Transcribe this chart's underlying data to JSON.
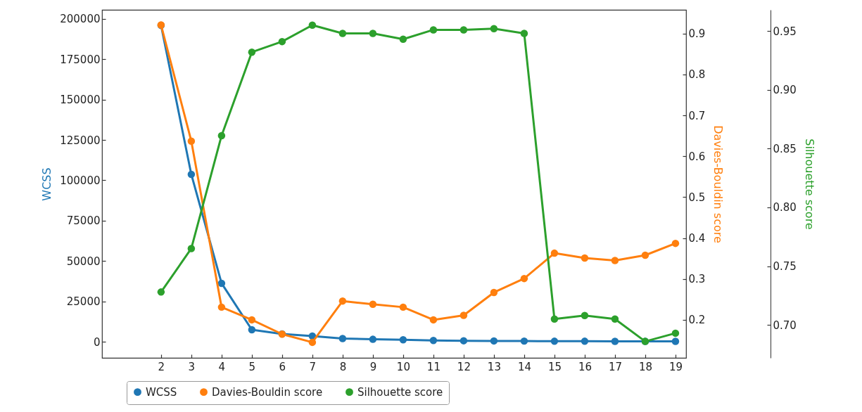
{
  "chart_data": {
    "type": "line",
    "ylabel": "WCSS",
    "y2label": "Davies-Bouldin score",
    "y3label": "Silhouette score",
    "marker": "circle",
    "grid": false,
    "legend": "bottom",
    "x": [
      2,
      3,
      4,
      5,
      6,
      7,
      8,
      9,
      10,
      11,
      12,
      13,
      14,
      15,
      16,
      17,
      18,
      19
    ],
    "xlim": [
      0.05,
      19.35
    ],
    "xticks": [
      2,
      3,
      4,
      5,
      6,
      7,
      8,
      9,
      10,
      11,
      12,
      13,
      14,
      15,
      16,
      17,
      18,
      19
    ],
    "ylim": [
      -10000,
      205600
    ],
    "yticks": [
      0,
      25000,
      50000,
      75000,
      100000,
      125000,
      150000,
      175000,
      200000
    ],
    "y2lim": [
      0.107,
      0.958
    ],
    "y2ticks": [
      0.2,
      0.3,
      0.4,
      0.5,
      0.6,
      0.7,
      0.8,
      0.9
    ],
    "y3lim": [
      0.672,
      0.968
    ],
    "y3ticks": [
      {
        "value": 0.7,
        "label": "0.70"
      },
      {
        "value": 0.75,
        "label": "0.75"
      },
      {
        "value": 0.8,
        "label": "0.80"
      },
      {
        "value": 0.85,
        "label": "0.85"
      },
      {
        "value": 0.9,
        "label": "0.90"
      },
      {
        "value": 0.95,
        "label": "0.95"
      }
    ],
    "series": [
      {
        "name": "WCSS",
        "color": "#1f77b4",
        "axis": "y",
        "values": [
          196000,
          103700,
          36200,
          7400,
          4800,
          3500,
          2000,
          1500,
          1200,
          800,
          600,
          500,
          400,
          300,
          300,
          200,
          200,
          200
        ]
      },
      {
        "name": "Davies-Bouldin score",
        "color": "#ff7f0e",
        "axis": "y2",
        "values": [
          0.921,
          0.637,
          0.231,
          0.2,
          0.165,
          0.145,
          0.246,
          0.238,
          0.231,
          0.2,
          0.211,
          0.267,
          0.301,
          0.363,
          0.351,
          0.345,
          0.358,
          0.387
        ]
      },
      {
        "name": "Silhouette score",
        "color": "#2ca02c",
        "axis": "y3",
        "values": [
          0.728,
          0.765,
          0.861,
          0.932,
          0.941,
          0.955,
          0.948,
          0.948,
          0.943,
          0.951,
          0.951,
          0.952,
          0.948,
          0.705,
          0.708,
          0.705,
          0.686,
          0.693
        ]
      }
    ]
  }
}
